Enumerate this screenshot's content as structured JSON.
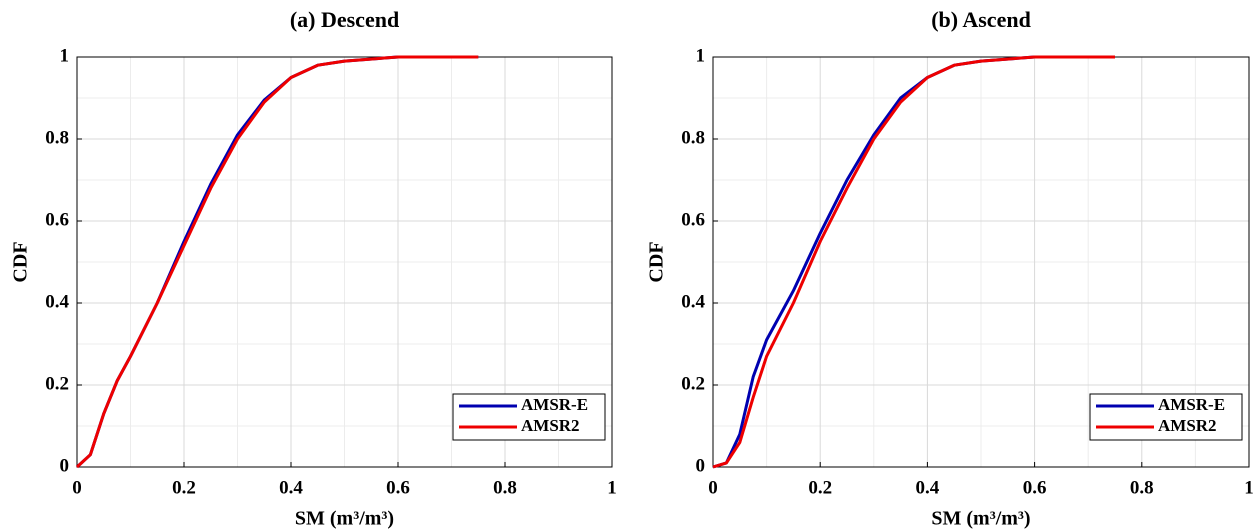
{
  "chart_data": [
    {
      "type": "line",
      "title": "(a) Descend",
      "xlabel": "SM (m³/m³)",
      "ylabel": "CDF",
      "x": [
        0,
        0.025,
        0.05,
        0.075,
        0.1,
        0.15,
        0.2,
        0.25,
        0.3,
        0.35,
        0.4,
        0.45,
        0.5,
        0.6,
        0.75
      ],
      "series": [
        {
          "name": "AMSR-E",
          "color": "#0000b0",
          "values": [
            0,
            0.03,
            0.13,
            0.21,
            0.27,
            0.4,
            0.55,
            0.69,
            0.81,
            0.895,
            0.95,
            0.98,
            0.99,
            1.0,
            1.0
          ]
        },
        {
          "name": "AMSR2",
          "color": "#ee0000",
          "values": [
            0,
            0.03,
            0.13,
            0.21,
            0.27,
            0.4,
            0.54,
            0.68,
            0.8,
            0.89,
            0.95,
            0.98,
            0.99,
            1.0,
            1.0
          ]
        }
      ],
      "xlim": [
        0,
        1
      ],
      "ylim": [
        0,
        1
      ],
      "xticks": [
        0,
        0.2,
        0.4,
        0.6,
        0.8,
        1
      ],
      "yticks": [
        0,
        0.2,
        0.4,
        0.6,
        0.8,
        1
      ],
      "grid": true,
      "legend": "lower right"
    },
    {
      "type": "line",
      "title": "(b) Ascend",
      "xlabel": "SM (m³/m³)",
      "ylabel": "CDF",
      "x": [
        0,
        0.025,
        0.05,
        0.075,
        0.1,
        0.15,
        0.2,
        0.25,
        0.3,
        0.35,
        0.4,
        0.45,
        0.5,
        0.6,
        0.75
      ],
      "series": [
        {
          "name": "AMSR-E",
          "color": "#0000b0",
          "values": [
            0,
            0.01,
            0.08,
            0.22,
            0.31,
            0.43,
            0.57,
            0.7,
            0.81,
            0.9,
            0.95,
            0.98,
            0.99,
            1.0,
            1.0
          ]
        },
        {
          "name": "AMSR2",
          "color": "#ee0000",
          "values": [
            0,
            0.01,
            0.06,
            0.17,
            0.27,
            0.4,
            0.55,
            0.68,
            0.8,
            0.89,
            0.95,
            0.98,
            0.99,
            1.0,
            1.0
          ]
        }
      ],
      "xlim": [
        0,
        1
      ],
      "ylim": [
        0,
        1
      ],
      "xticks": [
        0,
        0.2,
        0.4,
        0.6,
        0.8,
        1
      ],
      "yticks": [
        0,
        0.2,
        0.4,
        0.6,
        0.8,
        1
      ],
      "grid": true,
      "legend": "lower right"
    }
  ]
}
